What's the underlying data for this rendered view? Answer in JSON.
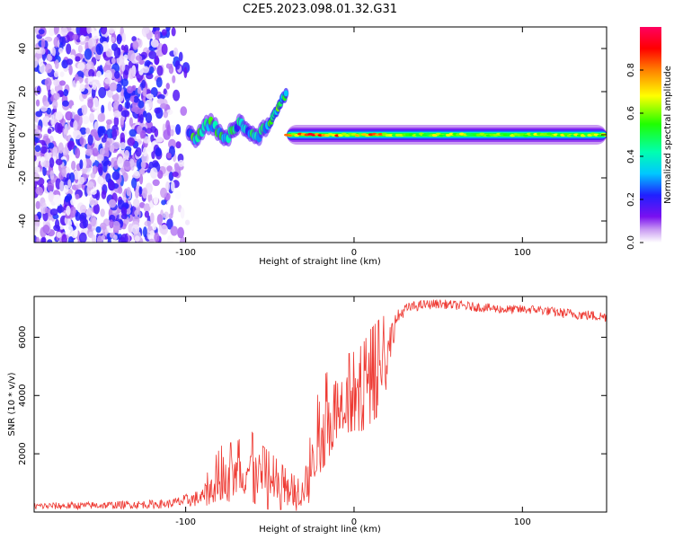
{
  "figure": {
    "title": "C2E5.2023.098.01.32.G31"
  },
  "chart_data": [
    {
      "type": "heatmap",
      "title": "C2E5.2023.098.01.32.G31",
      "xlabel": "Height of straight line (km)",
      "ylabel": "Frequency (Hz)",
      "xlim": [
        -190,
        150
      ],
      "ylim": [
        -50,
        50
      ],
      "xticks": [
        -100,
        0,
        100
      ],
      "xtick_labels": [
        "-100",
        "0",
        "100"
      ],
      "yticks": [
        -40,
        -20,
        0,
        20,
        40
      ],
      "ytick_labels": [
        "-40",
        "-20",
        "0",
        "20",
        "40"
      ],
      "colorbar": {
        "label": "Normalized spectral amplitude",
        "range": [
          0,
          1
        ],
        "ticks": [
          0,
          0.2,
          0.4,
          0.6,
          0.8
        ],
        "tick_labels": [
          "0.0",
          "0.2",
          "0.4",
          "0.6",
          "0.8"
        ],
        "colormap": "rainbow (purple-blue-cyan-green-yellow-red-magenta)"
      },
      "features": [
        {
          "name": "noise region",
          "x_range": [
            -190,
            -98
          ],
          "freq_range": [
            -50,
            50
          ],
          "amplitude": [
            0.0,
            0.2
          ]
        },
        {
          "name": "patchy signal",
          "x_range": [
            -98,
            -50
          ],
          "freq_center": 2,
          "amplitude": [
            0.2,
            0.6
          ]
        },
        {
          "name": "doppler excursion",
          "x_range": [
            -50,
            -40
          ],
          "freq_range": [
            5,
            20
          ],
          "amplitude": [
            0.3,
            0.6
          ]
        },
        {
          "name": "stable carrier",
          "x_range": [
            -40,
            150
          ],
          "freq_center": 0,
          "amplitude": [
            0.6,
            0.95
          ]
        }
      ]
    },
    {
      "type": "line",
      "xlabel": "Height of straight line (km)",
      "ylabel": "SNR (10 * v/v)",
      "xlim": [
        -190,
        150
      ],
      "ylim": [
        0,
        7400
      ],
      "xticks": [
        -100,
        0,
        100
      ],
      "xtick_labels": [
        "-100",
        "0",
        "100"
      ],
      "yticks": [
        2000,
        4000,
        6000
      ],
      "ytick_labels": [
        "2000",
        "4000",
        "6000"
      ],
      "series": [
        {
          "name": "SNR",
          "color": "#ee3a33",
          "x": [
            -190,
            -150,
            -110,
            -90,
            -85,
            -78,
            -70,
            -62,
            -55,
            -48,
            -40,
            -32,
            -25,
            -20,
            -15,
            -10,
            -5,
            0,
            5,
            10,
            15,
            20,
            25,
            30,
            35,
            40,
            50,
            60,
            70,
            80,
            90,
            100,
            110,
            120,
            130,
            140,
            150
          ],
          "values": [
            200,
            230,
            280,
            500,
            900,
            1300,
            1200,
            1500,
            1100,
            900,
            700,
            500,
            1500,
            2800,
            3200,
            3800,
            3900,
            4000,
            4100,
            4500,
            4800,
            5500,
            6600,
            6950,
            7050,
            7100,
            7150,
            7100,
            7050,
            7000,
            6950,
            6950,
            6950,
            6850,
            6800,
            6750,
            6700
          ],
          "spread": [
            120,
            130,
            150,
            300,
            500,
            700,
            800,
            900,
            800,
            700,
            500,
            400,
            900,
            1200,
            1100,
            1000,
            1000,
            1000,
            1100,
            1200,
            1200,
            900,
            300,
            200,
            180,
            170,
            160,
            160,
            160,
            160,
            160,
            160,
            160,
            170,
            180,
            180,
            180
          ]
        }
      ]
    }
  ]
}
